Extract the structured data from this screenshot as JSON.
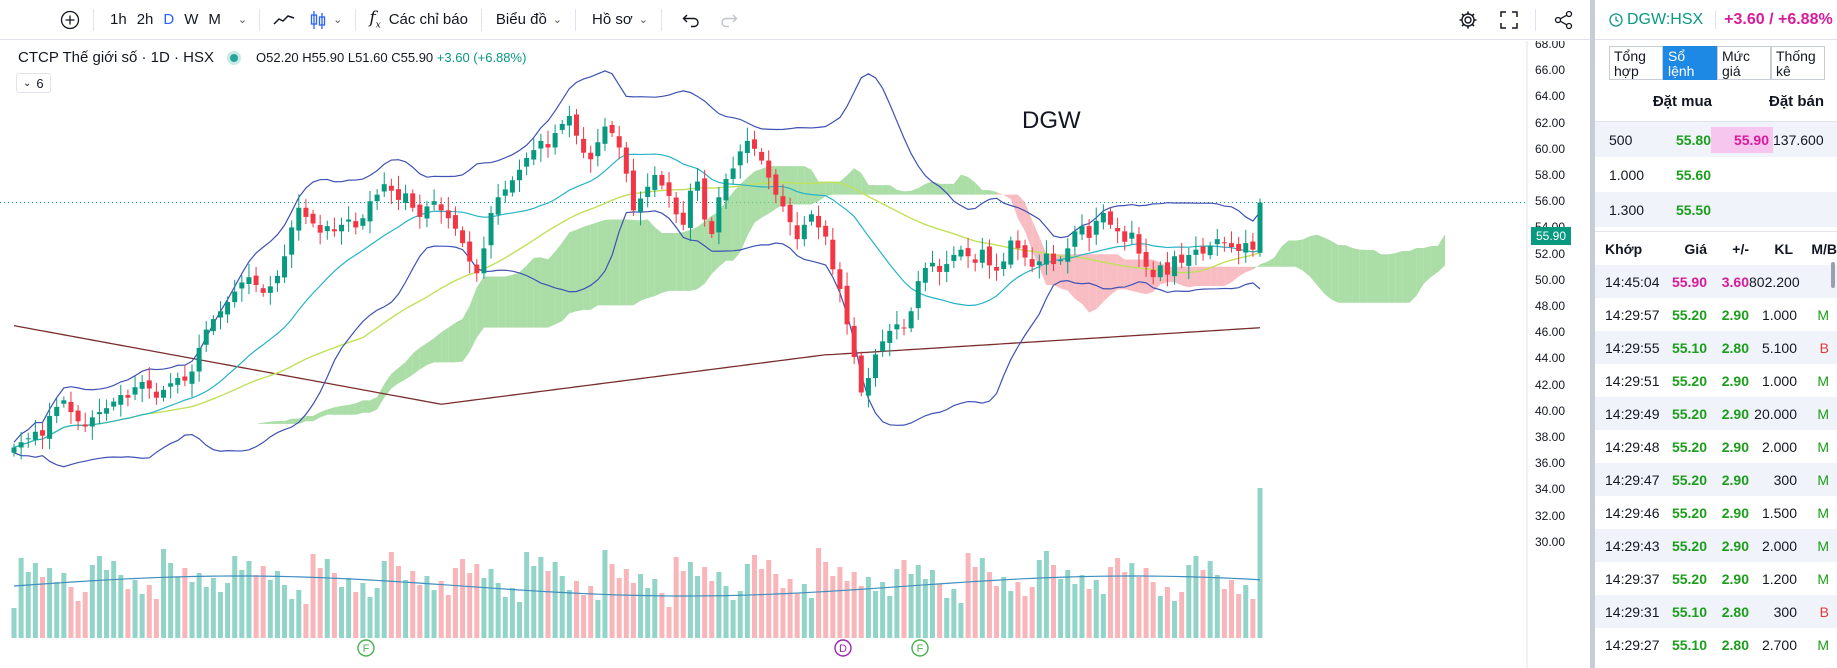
{
  "toolbar": {
    "intervals": [
      "1h",
      "2h",
      "D",
      "W",
      "M"
    ],
    "active_interval": "D",
    "indicators_label": "Các chỉ báo",
    "chart_type_label": "Biểu đồ",
    "profile_label": "Hồ sơ"
  },
  "legend": {
    "title": "CTCP Thế giới số · 1D · HSX",
    "o": "O52.20",
    "h": "H55.90",
    "l": "L51.60",
    "c": "C55.90",
    "change": "+3.60 (+6.88%)",
    "indicator_count": "6"
  },
  "watermark": "DGW",
  "last_price_label": "55.90",
  "y_axis_labels": [
    "68.00",
    "66.00",
    "64.00",
    "62.00",
    "60.00",
    "58.00",
    "56.00",
    "54.00",
    "52.00",
    "50.00",
    "48.00",
    "46.00",
    "44.00",
    "42.00",
    "40.00",
    "38.00",
    "36.00",
    "34.00",
    "32.00",
    "30.00"
  ],
  "event_markers": [
    {
      "label": "F",
      "color": "#4caf50"
    },
    {
      "label": "D",
      "color": "#9c27b0"
    },
    {
      "label": "F",
      "color": "#4caf50"
    }
  ],
  "colors": {
    "up": "#089981",
    "down": "#f23645",
    "bb": "#3f51b5",
    "ma_fast": "#26b3c7",
    "ma_mid": "#c0e15a",
    "ma_slow": "#7b2e2e",
    "cloud_green": "#8fd18a",
    "cloud_red": "#f6a7ad"
  },
  "chart_data": {
    "type": "candlestick",
    "ylim": [
      29,
      69
    ],
    "closes": [
      37.2,
      37.6,
      37.9,
      38.4,
      38.1,
      39.6,
      40.3,
      40.8,
      39.9,
      39.2,
      38.8,
      39.5,
      39.9,
      40.2,
      40.7,
      41.2,
      41.0,
      41.8,
      42.2,
      41.7,
      41.0,
      41.6,
      42.1,
      42.5,
      42.3,
      43.0,
      44.8,
      46.2,
      47.0,
      47.6,
      48.3,
      49.1,
      49.8,
      50.2,
      49.6,
      49.0,
      49.5,
      50.3,
      51.8,
      54.0,
      55.5,
      54.8,
      54.3,
      53.6,
      54.1,
      53.7,
      54.2,
      54.6,
      54.0,
      54.7,
      56.0,
      56.5,
      57.3,
      56.8,
      56.1,
      56.6,
      55.5,
      54.8,
      55.6,
      56.0,
      55.3,
      54.7,
      53.9,
      52.8,
      51.4,
      50.5,
      52.4,
      55.1,
      56.3,
      56.9,
      57.6,
      58.4,
      59.3,
      59.9,
      60.6,
      60.1,
      61.2,
      61.9,
      62.5,
      61.0,
      59.7,
      59.2,
      60.5,
      61.7,
      61.2,
      60.1,
      58.1,
      55.3,
      56.2,
      57.1,
      58.0,
      57.2,
      56.4,
      55.0,
      54.2,
      56.8,
      57.5,
      54.6,
      53.5,
      56.3,
      57.7,
      58.5,
      59.8,
      60.6,
      60.0,
      59.1,
      57.8,
      56.5,
      55.6,
      54.4,
      53.1,
      54.2,
      55.0,
      54.0,
      53.3,
      50.8,
      49.3,
      46.6,
      44.1,
      41.4,
      42.5,
      44.3,
      45.3,
      46.1,
      46.6,
      46.3,
      47.6,
      49.9,
      50.9,
      51.3,
      50.6,
      51.2,
      51.9,
      52.3,
      51.8,
      51.3,
      52.3,
      51.1,
      50.7,
      51.4,
      53.0,
      52.4,
      51.7,
      51.0,
      51.4,
      52.0,
      51.2,
      51.5,
      52.4,
      53.7,
      54.1,
      53.2,
      54.5,
      55.1,
      54.2,
      53.7,
      52.9,
      53.6,
      52.0,
      51.0,
      50.2,
      51.1,
      50.4,
      51.8,
      51.3,
      51.9,
      52.3,
      52.0,
      52.6,
      53.1,
      52.8,
      52.5,
      52.2,
      52.8,
      52.3,
      55.9
    ]
  },
  "orderbook": {
    "tabs": [
      "Tổng hợp",
      "Sổ lệnh",
      "Mức giá",
      "Thống kê"
    ],
    "active_tab": "Sổ lệnh",
    "bid_header": "Đặt mua",
    "ask_header": "Đặt bán",
    "rows": [
      {
        "bid_vol": "500",
        "bid_price": "55.80",
        "ask_price": "55.90",
        "ask_vol": "137.600"
      },
      {
        "bid_vol": "1.000",
        "bid_price": "55.60",
        "ask_price": "",
        "ask_vol": ""
      },
      {
        "bid_vol": "1.300",
        "bid_price": "55.50",
        "ask_price": "",
        "ask_vol": ""
      }
    ]
  },
  "trades": {
    "headers": [
      "Khớp",
      "Giá",
      "+/-",
      "KL",
      "M/B"
    ],
    "rows": [
      {
        "time": "14:45:04",
        "price": "55.90",
        "change": "3.60",
        "vol": "802.200",
        "side": ""
      },
      {
        "time": "14:29:57",
        "price": "55.20",
        "change": "2.90",
        "vol": "1.000",
        "side": "M"
      },
      {
        "time": "14:29:55",
        "price": "55.10",
        "change": "2.80",
        "vol": "5.100",
        "side": "B"
      },
      {
        "time": "14:29:51",
        "price": "55.20",
        "change": "2.90",
        "vol": "1.000",
        "side": "M"
      },
      {
        "time": "14:29:49",
        "price": "55.20",
        "change": "2.90",
        "vol": "20.000",
        "side": "M"
      },
      {
        "time": "14:29:48",
        "price": "55.20",
        "change": "2.90",
        "vol": "2.000",
        "side": "M"
      },
      {
        "time": "14:29:47",
        "price": "55.20",
        "change": "2.90",
        "vol": "300",
        "side": "M"
      },
      {
        "time": "14:29:46",
        "price": "55.20",
        "change": "2.90",
        "vol": "1.500",
        "side": "M"
      },
      {
        "time": "14:29:43",
        "price": "55.20",
        "change": "2.90",
        "vol": "2.000",
        "side": "M"
      },
      {
        "time": "14:29:37",
        "price": "55.20",
        "change": "2.90",
        "vol": "1.200",
        "side": "M"
      },
      {
        "time": "14:29:31",
        "price": "55.10",
        "change": "2.80",
        "vol": "300",
        "side": "B"
      },
      {
        "time": "14:29:27",
        "price": "55.10",
        "change": "2.80",
        "vol": "2.700",
        "side": "M"
      }
    ]
  },
  "panel": {
    "symbol": "DGW:HSX",
    "change": "+3.60 / +6.88%"
  }
}
